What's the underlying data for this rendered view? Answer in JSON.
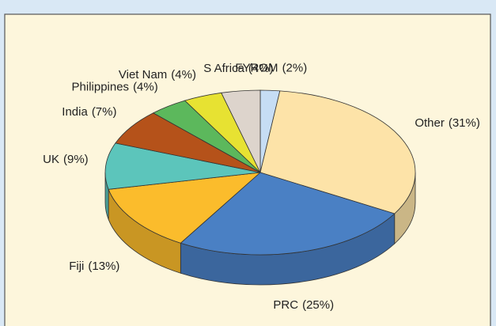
{
  "chart_data": {
    "type": "pie",
    "categories": [
      "FYROM",
      "Other",
      "PRC",
      "Fiji",
      "UK",
      "India",
      "Philippines",
      "Viet Nam",
      "S Africa"
    ],
    "values": [
      2,
      31,
      25,
      13,
      9,
      7,
      4,
      4,
      4
    ],
    "value_labels": [
      "(2%)",
      "(31%)",
      "(25%)",
      "(13%)",
      "(9%)",
      "(7%)",
      "(4%)",
      "(4%)",
      "(4%)"
    ],
    "colors": [
      "#c6ddf4",
      "#fde3a8",
      "#4a80c4",
      "#fbbc2c",
      "#5cc5bb",
      "#b5521a",
      "#5cb85c",
      "#e7e232",
      "#ddd4cc"
    ]
  }
}
